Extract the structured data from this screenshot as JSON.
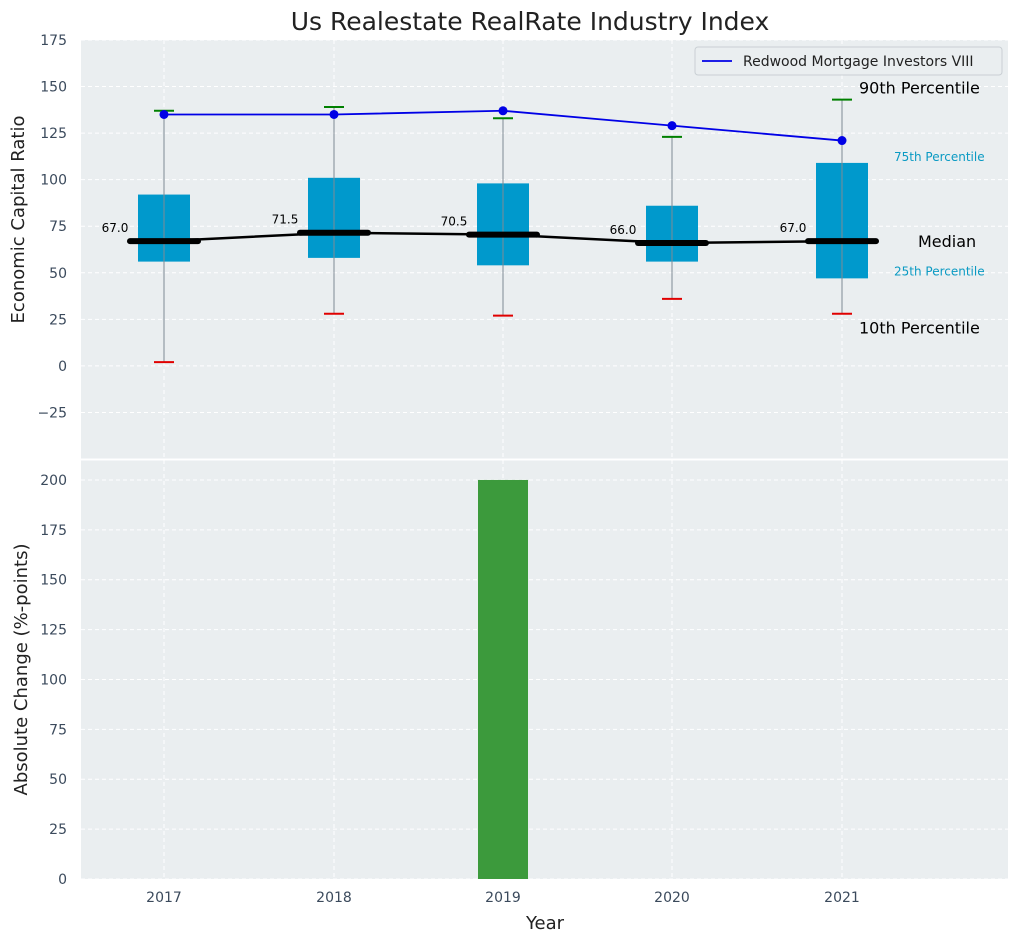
{
  "chart_data": [
    {
      "type": "box",
      "title": "Us Realestate RealRate Industry Index",
      "ylabel": "Economic Capital Ratio",
      "ylim": [
        -50,
        175
      ],
      "yticks": [
        -25,
        0,
        25,
        50,
        75,
        100,
        125,
        150,
        175
      ],
      "categories": [
        "2017",
        "2018",
        "2019",
        "2020",
        "2021"
      ],
      "grid": true,
      "boxes": [
        {
          "p10": 2,
          "p25": 56,
          "median": 67.0,
          "p75": 92,
          "p90": 137,
          "median_label": "67.0"
        },
        {
          "p10": 28,
          "p25": 58,
          "median": 71.5,
          "p75": 101,
          "p90": 139,
          "median_label": "71.5"
        },
        {
          "p10": 27,
          "p25": 54,
          "median": 70.5,
          "p75": 98,
          "p90": 133,
          "median_label": "70.5"
        },
        {
          "p10": 36,
          "p25": 56,
          "median": 66.0,
          "p75": 86,
          "p90": 123,
          "median_label": "66.0"
        },
        {
          "p10": 28,
          "p25": 47,
          "median": 67.0,
          "p75": 109,
          "p90": 143,
          "median_label": "67.0"
        }
      ],
      "series": [
        {
          "name": "Redwood Mortgage Investors VIII",
          "values": [
            135,
            135,
            137,
            129,
            121
          ],
          "color": "#0000e6"
        }
      ],
      "legend": "top-right",
      "annotations": {
        "p90": "90th Percentile",
        "p75": "75th Percentile",
        "median": "Median",
        "p25": "25th Percentile",
        "p10": "10th Percentile"
      }
    },
    {
      "type": "bar",
      "xlabel": "Year",
      "ylabel": "Absolute Change (%-points)",
      "ylim": [
        0,
        210
      ],
      "yticks": [
        0,
        25,
        50,
        75,
        100,
        125,
        150,
        175,
        200
      ],
      "categories": [
        "2017",
        "2018",
        "2019",
        "2020",
        "2021"
      ],
      "values": [
        0,
        0,
        200,
        0,
        0
      ],
      "grid": true
    }
  ],
  "colors": {
    "box": "#0099cc",
    "median": "#000000",
    "whisker_top": "#008000",
    "whisker_bottom": "#e00000",
    "series": "#0000e6",
    "bar": "#3c9a3c",
    "plot_bg": "#eaeef0"
  }
}
